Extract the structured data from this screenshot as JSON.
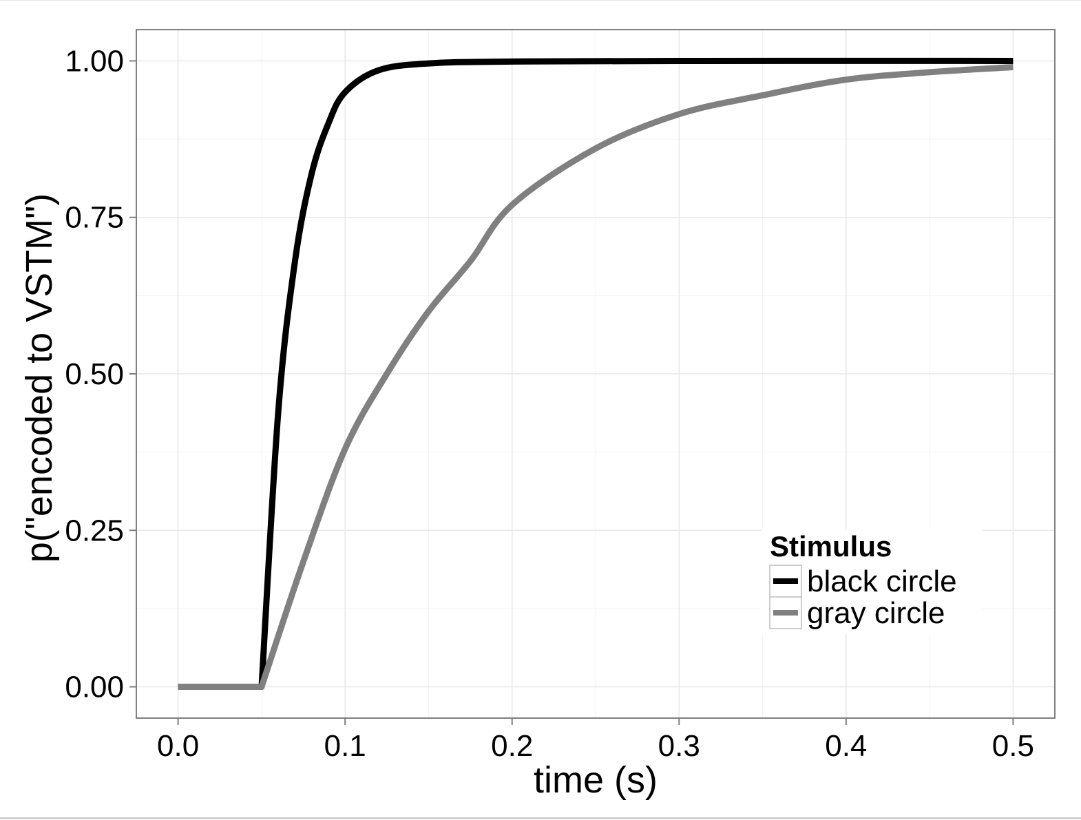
{
  "chart_data": {
    "type": "line",
    "xlabel": "time (s)",
    "ylabel": "p(\"encoded to VSTM\")",
    "xlim": [
      -0.025,
      0.525
    ],
    "ylim": [
      -0.05,
      1.05
    ],
    "x_ticks": [
      "0.0",
      "0.1",
      "0.2",
      "0.3",
      "0.4",
      "0.5"
    ],
    "y_ticks": [
      "0.00",
      "0.25",
      "0.50",
      "0.75",
      "1.00"
    ],
    "grid": true,
    "legend": {
      "title": "Stimulus",
      "position": "bottom-right"
    },
    "series": [
      {
        "name": "black circle",
        "color": "#000000",
        "points": [
          [
            0.0,
            0.0
          ],
          [
            0.05,
            0.0
          ],
          [
            0.06,
            0.44
          ],
          [
            0.07,
            0.68
          ],
          [
            0.08,
            0.82
          ],
          [
            0.09,
            0.9
          ],
          [
            0.1,
            0.95
          ],
          [
            0.12,
            0.985
          ],
          [
            0.15,
            0.996
          ],
          [
            0.2,
            0.999
          ],
          [
            0.3,
            1.0
          ],
          [
            0.5,
            1.0
          ]
        ]
      },
      {
        "name": "gray circle",
        "color": "#808080",
        "points": [
          [
            0.0,
            0.0
          ],
          [
            0.05,
            0.0
          ],
          [
            0.075,
            0.2
          ],
          [
            0.1,
            0.38
          ],
          [
            0.125,
            0.5
          ],
          [
            0.15,
            0.6
          ],
          [
            0.175,
            0.68
          ],
          [
            0.2,
            0.77
          ],
          [
            0.25,
            0.86
          ],
          [
            0.3,
            0.915
          ],
          [
            0.35,
            0.945
          ],
          [
            0.4,
            0.97
          ],
          [
            0.45,
            0.982
          ],
          [
            0.5,
            0.99
          ]
        ]
      }
    ]
  }
}
